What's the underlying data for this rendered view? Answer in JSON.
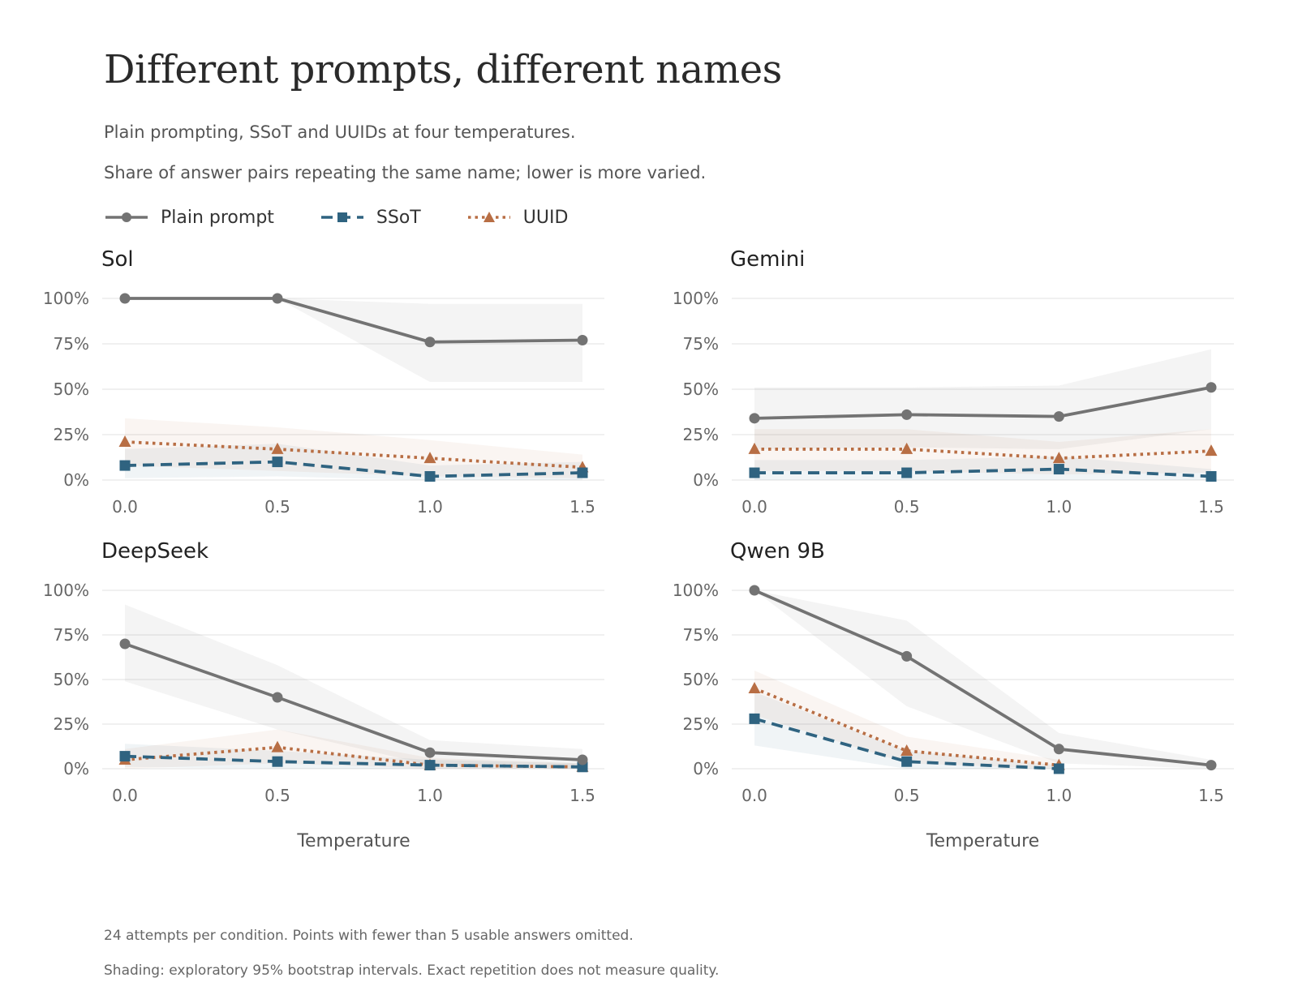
{
  "title": "Different prompts, different names",
  "subtitle_1": "Plain prompting, SSoT and UUIDs at four temperatures.",
  "subtitle_2": "Share of answer pairs repeating the same name; lower is more varied.",
  "legend": [
    {
      "name": "Plain prompt",
      "color": "#737373",
      "marker": "circle",
      "dash": "solid"
    },
    {
      "name": "SSoT",
      "color": "#2f6380",
      "marker": "square",
      "dash": "dashed"
    },
    {
      "name": "UUID",
      "color": "#b86e44",
      "marker": "triangle",
      "dash": "dotted"
    }
  ],
  "caption_1": "24 attempts per condition. Points with fewer than 5 usable answers omitted.",
  "caption_2": "Shading: exploratory 95% bootstrap intervals. Exact repetition does not measure quality.",
  "colors": {
    "plain": "#737373",
    "ssot": "#2f6380",
    "uuid": "#b86e44",
    "grid": "#e6e6e6"
  },
  "chart_data": [
    {
      "type": "line",
      "title": "Sol",
      "xlabel": "",
      "ylabel": "",
      "x": [
        0.0,
        0.5,
        1.0,
        1.5
      ],
      "x_ticks": [
        "0.0",
        "0.5",
        "1.0",
        "1.5"
      ],
      "y_ticks": [
        "0%",
        "25%",
        "50%",
        "75%",
        "100%"
      ],
      "ylim": [
        0,
        100
      ],
      "grid": true,
      "series": [
        {
          "name": "Plain prompt",
          "values": [
            100,
            100,
            76,
            77
          ],
          "ci_low": [
            100,
            100,
            54,
            54
          ],
          "ci_high": [
            100,
            100,
            97,
            97
          ]
        },
        {
          "name": "SSoT",
          "values": [
            8,
            10,
            2,
            4
          ],
          "ci_low": [
            1,
            2,
            0,
            0
          ],
          "ci_high": [
            17,
            20,
            8,
            10
          ]
        },
        {
          "name": "UUID",
          "values": [
            21,
            17,
            12,
            7
          ],
          "ci_low": [
            8,
            5,
            2,
            1
          ],
          "ci_high": [
            34,
            29,
            22,
            14
          ]
        }
      ]
    },
    {
      "type": "line",
      "title": "Gemini",
      "xlabel": "",
      "ylabel": "",
      "x": [
        0.0,
        0.5,
        1.0,
        1.5
      ],
      "x_ticks": [
        "0.0",
        "0.5",
        "1.0",
        "1.5"
      ],
      "y_ticks": [
        "0%",
        "25%",
        "50%",
        "75%",
        "100%"
      ],
      "ylim": [
        0,
        100
      ],
      "grid": true,
      "series": [
        {
          "name": "Plain prompt",
          "values": [
            34,
            36,
            35,
            51
          ],
          "ci_low": [
            17,
            18,
            17,
            28
          ],
          "ci_high": [
            51,
            51,
            52,
            72
          ]
        },
        {
          "name": "SSoT",
          "values": [
            4,
            4,
            6,
            2
          ],
          "ci_low": [
            0,
            0,
            0,
            0
          ],
          "ci_high": [
            11,
            11,
            13,
            6
          ]
        },
        {
          "name": "UUID",
          "values": [
            17,
            17,
            12,
            16
          ],
          "ci_low": [
            5,
            5,
            3,
            4
          ],
          "ci_high": [
            28,
            28,
            21,
            28
          ]
        }
      ]
    },
    {
      "type": "line",
      "title": "DeepSeek",
      "xlabel": "Temperature",
      "ylabel": "",
      "x": [
        0.0,
        0.5,
        1.0,
        1.5
      ],
      "x_ticks": [
        "0.0",
        "0.5",
        "1.0",
        "1.5"
      ],
      "y_ticks": [
        "0%",
        "25%",
        "50%",
        "75%",
        "100%"
      ],
      "ylim": [
        0,
        100
      ],
      "grid": true,
      "series": [
        {
          "name": "Plain prompt",
          "values": [
            70,
            40,
            9,
            5
          ],
          "ci_low": [
            49,
            22,
            2,
            0
          ],
          "ci_high": [
            92,
            58,
            16,
            11
          ]
        },
        {
          "name": "SSoT",
          "values": [
            7,
            4,
            2,
            1
          ],
          "ci_low": [
            1,
            0,
            0,
            0
          ],
          "ci_high": [
            14,
            10,
            5,
            3
          ]
        },
        {
          "name": "UUID",
          "values": [
            5,
            12,
            2,
            1
          ],
          "ci_low": [
            0,
            3,
            0,
            0
          ],
          "ci_high": [
            11,
            22,
            6,
            3
          ]
        }
      ]
    },
    {
      "type": "line",
      "title": "Qwen 9B",
      "xlabel": "Temperature",
      "ylabel": "",
      "x": [
        0.0,
        0.5,
        1.0,
        1.5
      ],
      "x_ticks": [
        "0.0",
        "0.5",
        "1.0",
        "1.5"
      ],
      "y_ticks": [
        "0%",
        "25%",
        "50%",
        "75%",
        "100%"
      ],
      "ylim": [
        0,
        100
      ],
      "grid": true,
      "series": [
        {
          "name": "Plain prompt",
          "values": [
            100,
            63,
            11,
            2
          ],
          "ci_low": [
            100,
            35,
            3,
            0
          ],
          "ci_high": [
            100,
            83,
            20,
            5
          ]
        },
        {
          "name": "SSoT",
          "values": [
            28,
            4,
            0,
            null
          ],
          "ci_low": [
            13,
            0,
            0,
            null
          ],
          "ci_high": [
            43,
            10,
            2,
            null
          ]
        },
        {
          "name": "UUID",
          "values": [
            45,
            10,
            2,
            null
          ],
          "ci_low": [
            30,
            3,
            0,
            null
          ],
          "ci_high": [
            55,
            18,
            5,
            null
          ]
        }
      ]
    }
  ]
}
